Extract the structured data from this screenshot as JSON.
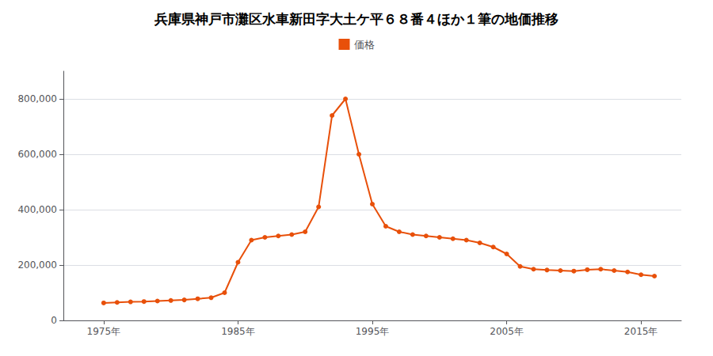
{
  "chart_data": {
    "type": "line",
    "title": "兵庫県神戸市灘区水車新田字大土ケ平６８番４ほか１筆の地価推移",
    "x": [
      1975,
      1976,
      1977,
      1978,
      1979,
      1980,
      1981,
      1982,
      1983,
      1984,
      1985,
      1986,
      1987,
      1988,
      1989,
      1990,
      1991,
      1992,
      1993,
      1994,
      1995,
      1996,
      1997,
      1998,
      1999,
      2000,
      2001,
      2002,
      2003,
      2004,
      2005,
      2006,
      2007,
      2008,
      2009,
      2010,
      2011,
      2012,
      2013,
      2014,
      2015,
      2016
    ],
    "series": [
      {
        "name": "価格",
        "color": "#E8500A",
        "marker": "circle",
        "values": [
          63000,
          65000,
          67000,
          68000,
          70000,
          72000,
          74000,
          78000,
          82000,
          100000,
          210000,
          290000,
          300000,
          305000,
          310000,
          320000,
          410000,
          740000,
          800000,
          600000,
          420000,
          340000,
          320000,
          310000,
          305000,
          300000,
          295000,
          290000,
          280000,
          265000,
          240000,
          195000,
          185000,
          182000,
          180000,
          178000,
          183000,
          185000,
          180000,
          175000,
          165000,
          160000
        ]
      }
    ],
    "xlim": [
      1972,
      2018
    ],
    "xticks": [
      {
        "value": 1975,
        "label": "1975年"
      },
      {
        "value": 1985,
        "label": "1985年"
      },
      {
        "value": 1995,
        "label": "1995年"
      },
      {
        "value": 2005,
        "label": "2005年"
      },
      {
        "value": 2015,
        "label": "2015年"
      }
    ],
    "ylim": [
      0,
      900000
    ],
    "yticks": [
      0,
      {
        "value": 200000,
        "label": "200,000"
      },
      {
        "value": 400000,
        "label": "400,000"
      },
      {
        "value": 600000,
        "label": "600,000"
      },
      {
        "value": 800000,
        "label": "800,000"
      }
    ],
    "grid": true,
    "legend": "top"
  }
}
